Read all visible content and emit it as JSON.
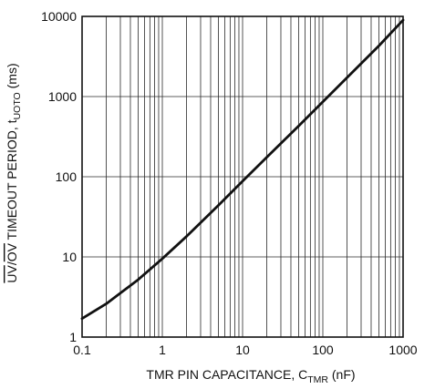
{
  "chart_data": {
    "type": "line",
    "xscale": "log",
    "yscale": "log",
    "xlim": [
      0.1,
      1000
    ],
    "ylim": [
      1,
      10000
    ],
    "grid": true,
    "x_ticks": [
      "0.1",
      "1",
      "10",
      "100",
      "1000"
    ],
    "y_ticks": [
      "1",
      "10",
      "100",
      "1000",
      "10000"
    ],
    "xlabel": {
      "main": "TMR PIN CAPACITANCE, C",
      "sub": "TMR",
      "unit": " (nF)"
    },
    "ylabel": {
      "overline_1": "UV",
      "slash": "/",
      "overline_2": "OV",
      "main": " TIMEOUT PERIOD, t",
      "sub": "UOTO",
      "unit": " (ms)"
    },
    "series": [
      {
        "x": [
          0.1,
          0.2,
          0.5,
          1,
          2,
          5,
          10,
          20,
          50,
          100,
          200,
          500,
          1000
        ],
        "y": [
          1.7,
          2.6,
          5.2,
          9.5,
          18,
          44,
          88,
          175,
          430,
          860,
          1720,
          4300,
          9000
        ]
      }
    ]
  }
}
